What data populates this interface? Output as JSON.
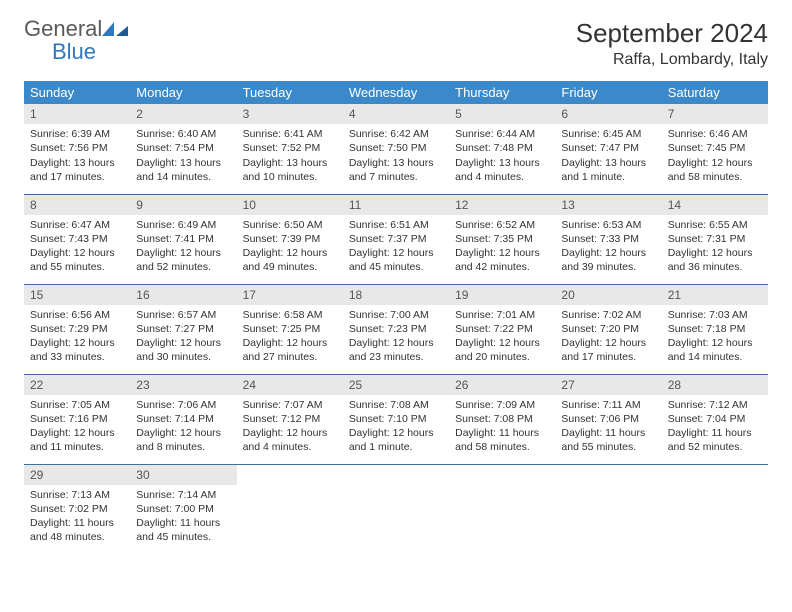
{
  "logo": {
    "general": "General",
    "blue": "Blue"
  },
  "header": {
    "month_title": "September 2024",
    "location": "Raffa, Lombardy, Italy"
  },
  "colors": {
    "header_bg": "#3b89c9",
    "header_fg": "#ffffff",
    "daynum_bg": "#e8e8e8",
    "row_border": "#3b6fa0",
    "logo_blue": "#2f78bf",
    "logo_gray": "#5a5a5a"
  },
  "weekdays": [
    "Sunday",
    "Monday",
    "Tuesday",
    "Wednesday",
    "Thursday",
    "Friday",
    "Saturday"
  ],
  "days": [
    {
      "n": "1",
      "sunrise": "Sunrise: 6:39 AM",
      "sunset": "Sunset: 7:56 PM",
      "day1": "Daylight: 13 hours",
      "day2": "and 17 minutes."
    },
    {
      "n": "2",
      "sunrise": "Sunrise: 6:40 AM",
      "sunset": "Sunset: 7:54 PM",
      "day1": "Daylight: 13 hours",
      "day2": "and 14 minutes."
    },
    {
      "n": "3",
      "sunrise": "Sunrise: 6:41 AM",
      "sunset": "Sunset: 7:52 PM",
      "day1": "Daylight: 13 hours",
      "day2": "and 10 minutes."
    },
    {
      "n": "4",
      "sunrise": "Sunrise: 6:42 AM",
      "sunset": "Sunset: 7:50 PM",
      "day1": "Daylight: 13 hours",
      "day2": "and 7 minutes."
    },
    {
      "n": "5",
      "sunrise": "Sunrise: 6:44 AM",
      "sunset": "Sunset: 7:48 PM",
      "day1": "Daylight: 13 hours",
      "day2": "and 4 minutes."
    },
    {
      "n": "6",
      "sunrise": "Sunrise: 6:45 AM",
      "sunset": "Sunset: 7:47 PM",
      "day1": "Daylight: 13 hours",
      "day2": "and 1 minute."
    },
    {
      "n": "7",
      "sunrise": "Sunrise: 6:46 AM",
      "sunset": "Sunset: 7:45 PM",
      "day1": "Daylight: 12 hours",
      "day2": "and 58 minutes."
    },
    {
      "n": "8",
      "sunrise": "Sunrise: 6:47 AM",
      "sunset": "Sunset: 7:43 PM",
      "day1": "Daylight: 12 hours",
      "day2": "and 55 minutes."
    },
    {
      "n": "9",
      "sunrise": "Sunrise: 6:49 AM",
      "sunset": "Sunset: 7:41 PM",
      "day1": "Daylight: 12 hours",
      "day2": "and 52 minutes."
    },
    {
      "n": "10",
      "sunrise": "Sunrise: 6:50 AM",
      "sunset": "Sunset: 7:39 PM",
      "day1": "Daylight: 12 hours",
      "day2": "and 49 minutes."
    },
    {
      "n": "11",
      "sunrise": "Sunrise: 6:51 AM",
      "sunset": "Sunset: 7:37 PM",
      "day1": "Daylight: 12 hours",
      "day2": "and 45 minutes."
    },
    {
      "n": "12",
      "sunrise": "Sunrise: 6:52 AM",
      "sunset": "Sunset: 7:35 PM",
      "day1": "Daylight: 12 hours",
      "day2": "and 42 minutes."
    },
    {
      "n": "13",
      "sunrise": "Sunrise: 6:53 AM",
      "sunset": "Sunset: 7:33 PM",
      "day1": "Daylight: 12 hours",
      "day2": "and 39 minutes."
    },
    {
      "n": "14",
      "sunrise": "Sunrise: 6:55 AM",
      "sunset": "Sunset: 7:31 PM",
      "day1": "Daylight: 12 hours",
      "day2": "and 36 minutes."
    },
    {
      "n": "15",
      "sunrise": "Sunrise: 6:56 AM",
      "sunset": "Sunset: 7:29 PM",
      "day1": "Daylight: 12 hours",
      "day2": "and 33 minutes."
    },
    {
      "n": "16",
      "sunrise": "Sunrise: 6:57 AM",
      "sunset": "Sunset: 7:27 PM",
      "day1": "Daylight: 12 hours",
      "day2": "and 30 minutes."
    },
    {
      "n": "17",
      "sunrise": "Sunrise: 6:58 AM",
      "sunset": "Sunset: 7:25 PM",
      "day1": "Daylight: 12 hours",
      "day2": "and 27 minutes."
    },
    {
      "n": "18",
      "sunrise": "Sunrise: 7:00 AM",
      "sunset": "Sunset: 7:23 PM",
      "day1": "Daylight: 12 hours",
      "day2": "and 23 minutes."
    },
    {
      "n": "19",
      "sunrise": "Sunrise: 7:01 AM",
      "sunset": "Sunset: 7:22 PM",
      "day1": "Daylight: 12 hours",
      "day2": "and 20 minutes."
    },
    {
      "n": "20",
      "sunrise": "Sunrise: 7:02 AM",
      "sunset": "Sunset: 7:20 PM",
      "day1": "Daylight: 12 hours",
      "day2": "and 17 minutes."
    },
    {
      "n": "21",
      "sunrise": "Sunrise: 7:03 AM",
      "sunset": "Sunset: 7:18 PM",
      "day1": "Daylight: 12 hours",
      "day2": "and 14 minutes."
    },
    {
      "n": "22",
      "sunrise": "Sunrise: 7:05 AM",
      "sunset": "Sunset: 7:16 PM",
      "day1": "Daylight: 12 hours",
      "day2": "and 11 minutes."
    },
    {
      "n": "23",
      "sunrise": "Sunrise: 7:06 AM",
      "sunset": "Sunset: 7:14 PM",
      "day1": "Daylight: 12 hours",
      "day2": "and 8 minutes."
    },
    {
      "n": "24",
      "sunrise": "Sunrise: 7:07 AM",
      "sunset": "Sunset: 7:12 PM",
      "day1": "Daylight: 12 hours",
      "day2": "and 4 minutes."
    },
    {
      "n": "25",
      "sunrise": "Sunrise: 7:08 AM",
      "sunset": "Sunset: 7:10 PM",
      "day1": "Daylight: 12 hours",
      "day2": "and 1 minute."
    },
    {
      "n": "26",
      "sunrise": "Sunrise: 7:09 AM",
      "sunset": "Sunset: 7:08 PM",
      "day1": "Daylight: 11 hours",
      "day2": "and 58 minutes."
    },
    {
      "n": "27",
      "sunrise": "Sunrise: 7:11 AM",
      "sunset": "Sunset: 7:06 PM",
      "day1": "Daylight: 11 hours",
      "day2": "and 55 minutes."
    },
    {
      "n": "28",
      "sunrise": "Sunrise: 7:12 AM",
      "sunset": "Sunset: 7:04 PM",
      "day1": "Daylight: 11 hours",
      "day2": "and 52 minutes."
    },
    {
      "n": "29",
      "sunrise": "Sunrise: 7:13 AM",
      "sunset": "Sunset: 7:02 PM",
      "day1": "Daylight: 11 hours",
      "day2": "and 48 minutes."
    },
    {
      "n": "30",
      "sunrise": "Sunrise: 7:14 AM",
      "sunset": "Sunset: 7:00 PM",
      "day1": "Daylight: 11 hours",
      "day2": "and 45 minutes."
    }
  ]
}
